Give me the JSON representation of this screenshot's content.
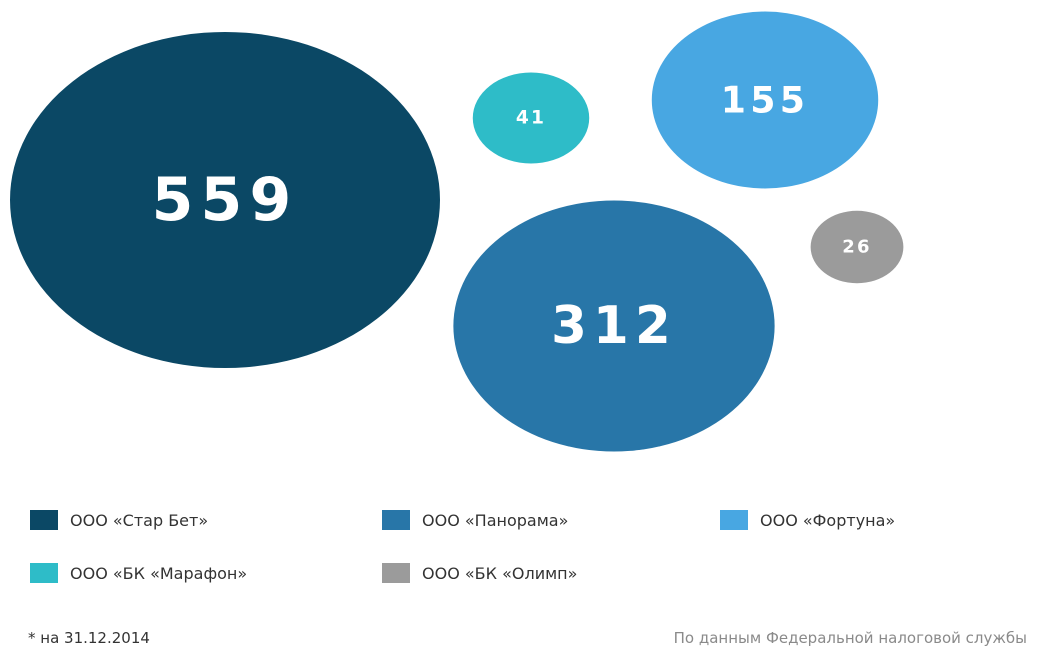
{
  "chart_data": {
    "type": "bubble",
    "series": [
      {
        "name": "ООО «Стар Бет»",
        "value": 559,
        "label": "559",
        "color": "#0b4865"
      },
      {
        "name": "ООО «Панорама»",
        "value": 312,
        "label": "312",
        "color": "#2876a8"
      },
      {
        "name": "ООО «Фортуна»",
        "value": 155,
        "label": "155",
        "color": "#48a7e2"
      },
      {
        "name": "ООО «БК «Марафон»",
        "value": 41,
        "label": "41",
        "color": "#2ebcc8"
      },
      {
        "name": "ООО «БК «Олимп»",
        "value": 26,
        "label": "26",
        "color": "#9b9b9b"
      }
    ],
    "legend_position": "bottom",
    "grid": false
  },
  "footnote": "* на 31.12.2014",
  "source": "По данным Федеральной налоговой службы"
}
